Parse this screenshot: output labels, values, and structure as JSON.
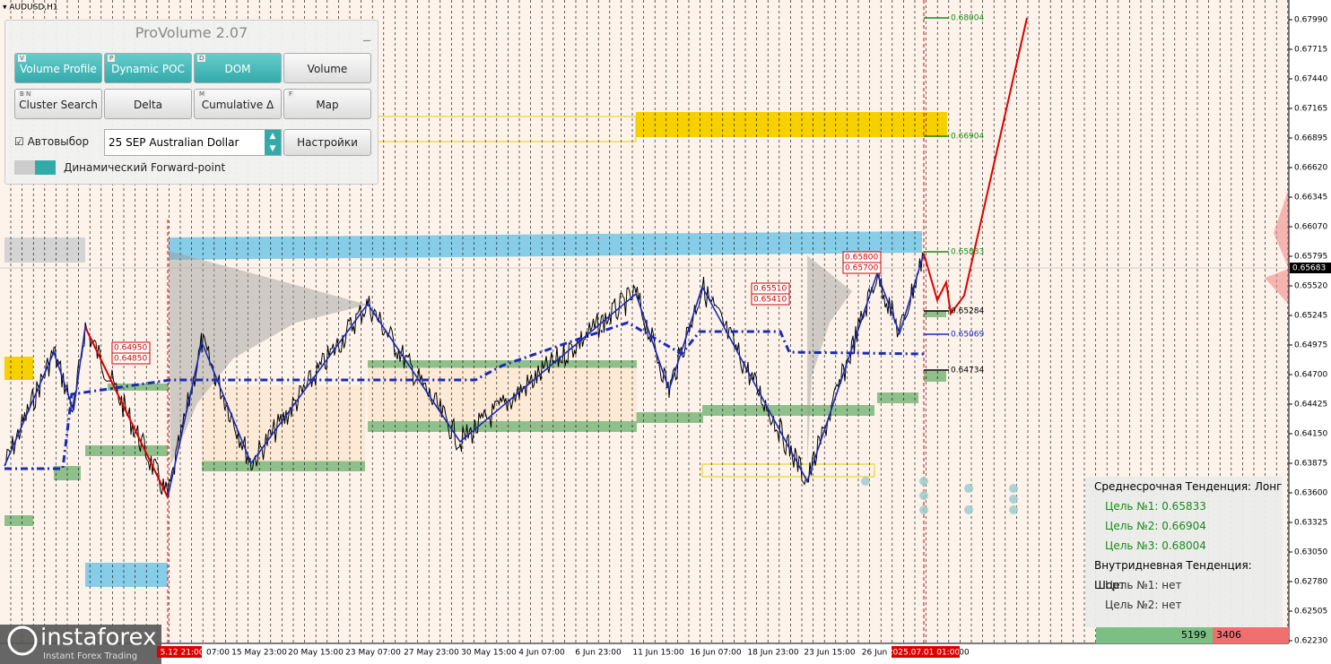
{
  "symbol": "AUDUSD,H1",
  "panel": {
    "title": "ProVolume 2.07",
    "buttons": [
      {
        "key": "V",
        "label": "Volume Profile"
      },
      {
        "key": "P",
        "label": "Dynamic POC"
      },
      {
        "key": "D",
        "label": "DOM"
      },
      {
        "label": "Volume"
      },
      {
        "key": "B N",
        "label": "Cluster Search"
      },
      {
        "label": "Delta"
      },
      {
        "key": "M",
        "label": "Cumulative Δ"
      },
      {
        "key": "F",
        "label": "Map"
      }
    ],
    "autoselect": "Автовыбор",
    "instrument": "25 SEP Australian Dollar",
    "settings": "Настройки",
    "forward_point": "Динамический Forward-point"
  },
  "price_axis": [
    "0.67990",
    "0.67715",
    "0.67440",
    "0.67165",
    "0.66895",
    "0.66620",
    "0.66345",
    "0.66070",
    "0.65795",
    "0.65520",
    "0.65245",
    "0.64975",
    "0.64700",
    "0.64425",
    "0.64150",
    "0.63875",
    "0.63600",
    "0.63325",
    "0.63050",
    "0.62780",
    "0.62505",
    "0.62230"
  ],
  "current_price": "0.65683",
  "time_axis": [
    "5.12 21:00",
    "07:00",
    "15 May 23:00",
    "20 May 15:00",
    "23 May 07:00",
    "27 May 23:00",
    "30 May 15:00",
    "4 Jun 07:00",
    "6 Jun 23:00",
    "11 Jun 15:00",
    "16 Jun 07:00",
    "18 Jun 23:00",
    "23 Jun 15:00",
    "26 Jun",
    "2025.07.01 01:00",
    "00"
  ],
  "levels": [
    "0.68004",
    "0.66904",
    "0.65833",
    "0.65284",
    "0.65069",
    "0.64734"
  ],
  "boxes": [
    "0.64950",
    "0.64850",
    "0.65510",
    "0.65410",
    "0.65800",
    "0.65700"
  ],
  "info": [
    "Среднесрочная Тенденция: Лонг",
    "Цель №1: 0.65833",
    "Цель №2: 0.66904",
    "Цель №3: 0.68004",
    "Внутридневная Тенденция: Шорт",
    "Цель №1: нет",
    "Цель №2: нет"
  ],
  "footer": [
    "5199",
    "3406"
  ],
  "logo": {
    "name": "instaforex",
    "tagline": "Instant Forex Trading"
  }
}
